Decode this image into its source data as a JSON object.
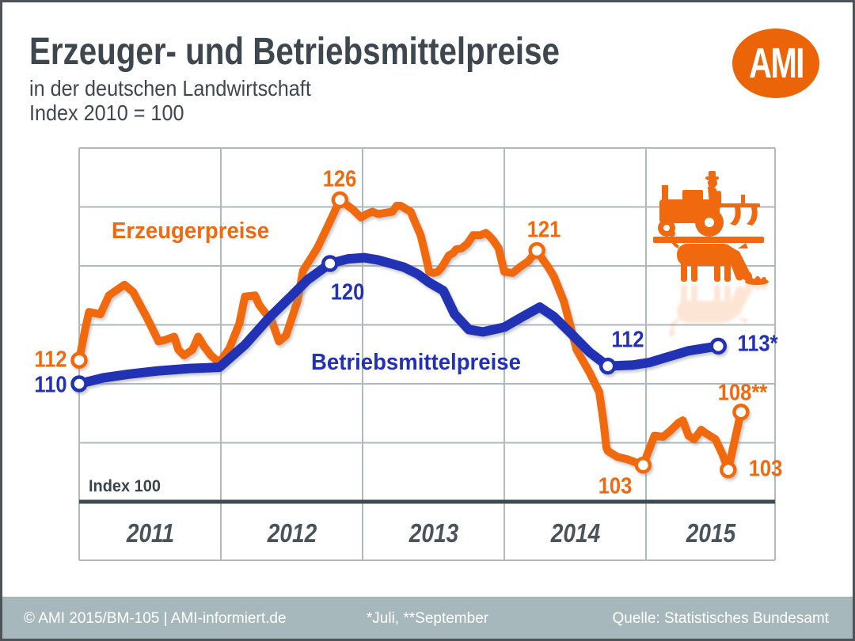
{
  "header": {
    "title": "Erzeuger- und Betriebsmittelpreise",
    "subtitle1": "in der deutschen Landwirtschaft",
    "subtitle2": "Index 2010 = 100",
    "logo_text": "AMI"
  },
  "colors": {
    "orange": "#F1690F",
    "blue": "#2231B5",
    "grid": "#AEBABE",
    "axis_dark": "#3E4A50",
    "title_text": "#3E474E",
    "year_text": "#4A5359",
    "footer_bg": "#A7B8BD",
    "footer_text": "#FFFFFF",
    "logo_orange": "#EC6408"
  },
  "chart_data": {
    "type": "line",
    "title": "Erzeuger- und Betriebsmittelpreise",
    "subtitle": "in der deutschen Landwirtschaft, Index 2010 = 100",
    "x_axis": {
      "categories": [
        "2011",
        "2012",
        "2013",
        "2014",
        "2015"
      ]
    },
    "y_axis": {
      "baseline_label": "Index 100",
      "baseline_value": 100,
      "max": 130,
      "gridline_step": 5
    },
    "legend_position": "inline",
    "grid": true,
    "series": [
      {
        "name": "Erzeugerpreise",
        "color": "#F1690F",
        "points": [
          [
            0.0,
            112.0
          ],
          [
            0.04,
            114.5
          ],
          [
            0.07,
            116.1
          ],
          [
            0.11,
            116.0
          ],
          [
            0.15,
            115.9
          ],
          [
            0.21,
            117.5
          ],
          [
            0.27,
            118.0
          ],
          [
            0.32,
            118.4
          ],
          [
            0.38,
            117.8
          ],
          [
            0.42,
            116.9
          ],
          [
            0.47,
            115.8
          ],
          [
            0.52,
            114.6
          ],
          [
            0.56,
            113.6
          ],
          [
            0.6,
            113.7
          ],
          [
            0.67,
            114.0
          ],
          [
            0.7,
            112.9
          ],
          [
            0.74,
            112.4
          ],
          [
            0.8,
            112.9
          ],
          [
            0.84,
            114.0
          ],
          [
            0.88,
            113.2
          ],
          [
            0.93,
            112.4
          ],
          [
            0.99,
            111.8
          ],
          [
            1.06,
            113.0
          ],
          [
            1.13,
            115.1
          ],
          [
            1.17,
            117.4
          ],
          [
            1.24,
            117.5
          ],
          [
            1.27,
            116.7
          ],
          [
            1.36,
            115.3
          ],
          [
            1.41,
            113.6
          ],
          [
            1.46,
            114.1
          ],
          [
            1.54,
            117.0
          ],
          [
            1.58,
            119.6
          ],
          [
            1.68,
            121.5
          ],
          [
            1.76,
            123.5
          ],
          [
            1.84,
            125.6
          ],
          [
            1.93,
            124.8
          ],
          [
            1.99,
            124.1
          ],
          [
            2.03,
            124.4
          ],
          [
            2.07,
            124.6
          ],
          [
            2.11,
            124.4
          ],
          [
            2.16,
            124.5
          ],
          [
            2.21,
            124.6
          ],
          [
            2.24,
            125.1
          ],
          [
            2.27,
            125.1
          ],
          [
            2.31,
            124.8
          ],
          [
            2.34,
            124.6
          ],
          [
            2.36,
            124.0
          ],
          [
            2.41,
            122.6
          ],
          [
            2.44,
            121.1
          ],
          [
            2.47,
            119.5
          ],
          [
            2.5,
            119.4
          ],
          [
            2.53,
            119.5
          ],
          [
            2.56,
            119.9
          ],
          [
            2.61,
            120.9
          ],
          [
            2.64,
            121.1
          ],
          [
            2.66,
            121.4
          ],
          [
            2.7,
            121.5
          ],
          [
            2.74,
            121.9
          ],
          [
            2.78,
            122.6
          ],
          [
            2.83,
            122.6
          ],
          [
            2.87,
            122.8
          ],
          [
            2.89,
            122.6
          ],
          [
            2.92,
            122.2
          ],
          [
            2.96,
            121.5
          ],
          [
            3.0,
            119.5
          ],
          [
            3.06,
            119.4
          ],
          [
            3.11,
            119.9
          ],
          [
            3.17,
            120.4
          ],
          [
            3.23,
            121.3
          ],
          [
            3.28,
            120.4
          ],
          [
            3.31,
            119.9
          ],
          [
            3.35,
            119.1
          ],
          [
            3.39,
            117.9
          ],
          [
            3.42,
            117.0
          ],
          [
            3.51,
            112.9
          ],
          [
            3.6,
            111.0
          ],
          [
            3.67,
            109.3
          ],
          [
            3.7,
            106.8
          ],
          [
            3.72,
            104.6
          ],
          [
            3.73,
            104.3
          ],
          [
            3.8,
            103.8
          ],
          [
            3.87,
            103.6
          ],
          [
            3.98,
            103.1
          ],
          [
            4.06,
            105.6
          ],
          [
            4.12,
            105.5
          ],
          [
            4.17,
            106.0
          ],
          [
            4.23,
            106.7
          ],
          [
            4.26,
            106.9
          ],
          [
            4.3,
            105.6
          ],
          [
            4.34,
            105.3
          ],
          [
            4.39,
            106.1
          ],
          [
            4.41,
            105.9
          ],
          [
            4.49,
            105.3
          ],
          [
            4.54,
            104.0
          ],
          [
            4.58,
            102.7
          ],
          [
            4.67,
            107.6
          ]
        ],
        "markers": [
          {
            "t": 0.0,
            "v": 112.0,
            "label": "112"
          },
          {
            "t": 1.84,
            "v": 125.6,
            "label": "126"
          },
          {
            "t": 3.23,
            "v": 121.3,
            "label": "121"
          },
          {
            "t": 3.98,
            "v": 103.1,
            "label": "103"
          },
          {
            "t": 4.58,
            "v": 102.7,
            "label": "103"
          },
          {
            "t": 4.67,
            "v": 107.6,
            "label": "108**"
          }
        ]
      },
      {
        "name": "Betriebsmittelpreise",
        "color": "#2231B5",
        "points": [
          [
            0.0,
            110.0
          ],
          [
            0.17,
            110.5
          ],
          [
            0.34,
            110.8
          ],
          [
            0.56,
            111.1
          ],
          [
            0.78,
            111.3
          ],
          [
            0.99,
            111.4
          ],
          [
            1.17,
            113.3
          ],
          [
            1.34,
            115.6
          ],
          [
            1.51,
            117.6
          ],
          [
            1.61,
            118.8
          ],
          [
            1.77,
            120.2
          ],
          [
            1.9,
            120.6
          ],
          [
            2.01,
            120.7
          ],
          [
            2.11,
            120.5
          ],
          [
            2.2,
            120.2
          ],
          [
            2.29,
            119.9
          ],
          [
            2.39,
            119.3
          ],
          [
            2.47,
            118.6
          ],
          [
            2.57,
            117.9
          ],
          [
            2.65,
            115.9
          ],
          [
            2.75,
            114.6
          ],
          [
            2.85,
            114.4
          ],
          [
            3.0,
            114.8
          ],
          [
            3.13,
            115.7
          ],
          [
            3.25,
            116.5
          ],
          [
            3.35,
            115.7
          ],
          [
            3.46,
            114.4
          ],
          [
            3.6,
            112.7
          ],
          [
            3.73,
            111.5
          ],
          [
            3.91,
            111.6
          ],
          [
            4.02,
            111.8
          ],
          [
            4.16,
            112.3
          ],
          [
            4.3,
            112.8
          ],
          [
            4.51,
            113.2
          ]
        ],
        "markers": [
          {
            "t": 0.0,
            "v": 110.0,
            "label": "110"
          },
          {
            "t": 1.77,
            "v": 120.2,
            "label": "120"
          },
          {
            "t": 3.73,
            "v": 111.5,
            "label": "112"
          },
          {
            "t": 4.51,
            "v": 113.2,
            "label": "113*"
          }
        ]
      }
    ],
    "footnote": "*Juli, **September"
  },
  "footer": {
    "left": "© AMI 2015/BM-105 | AMI-informiert.de",
    "center": "*Juli, **September",
    "right": "Quelle: Statistisches Bundesamt"
  }
}
